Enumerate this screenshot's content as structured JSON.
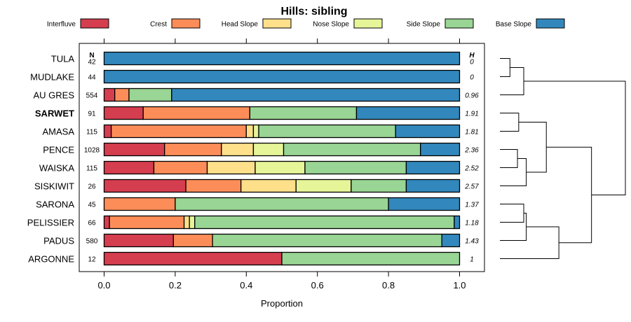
{
  "chart_data": {
    "type": "bar",
    "stacked": true,
    "orientation": "horizontal",
    "title": "Hills: sibling",
    "xlabel": "Proportion",
    "xlim": [
      0,
      1
    ],
    "xticks": [
      "0.0",
      "0.2",
      "0.4",
      "0.6",
      "0.8",
      "1.0"
    ],
    "n_header": "N",
    "h_header": "H",
    "highlight": "SARWET",
    "classes": [
      {
        "name": "Interfluve",
        "color": "#d53e4f"
      },
      {
        "name": "Crest",
        "color": "#fc8d59"
      },
      {
        "name": "Head Slope",
        "color": "#fee08b"
      },
      {
        "name": "Nose Slope",
        "color": "#e6f598"
      },
      {
        "name": "Side Slope",
        "color": "#99d594"
      },
      {
        "name": "Base Slope",
        "color": "#3288bd"
      }
    ],
    "rows": [
      {
        "label": "TULA",
        "n": "42",
        "h": "0",
        "values": [
          0,
          0,
          0,
          0,
          0,
          1.0
        ]
      },
      {
        "label": "MUDLAKE",
        "n": "44",
        "h": "0",
        "values": [
          0,
          0,
          0,
          0,
          0,
          1.0
        ]
      },
      {
        "label": "AU GRES",
        "n": "554",
        "h": "0.96",
        "values": [
          0.03,
          0.04,
          0,
          0,
          0.12,
          0.81
        ]
      },
      {
        "label": "SARWET",
        "n": "91",
        "h": "1.91",
        "values": [
          0.11,
          0.3,
          0,
          0,
          0.3,
          0.29
        ]
      },
      {
        "label": "AMASA",
        "n": "115",
        "h": "1.81",
        "values": [
          0.02,
          0.38,
          0.02,
          0.015,
          0.385,
          0.18
        ]
      },
      {
        "label": "PENCE",
        "n": "1028",
        "h": "2.36",
        "values": [
          0.17,
          0.16,
          0.09,
          0.085,
          0.385,
          0.11
        ]
      },
      {
        "label": "WAISKA",
        "n": "115",
        "h": "2.52",
        "values": [
          0.14,
          0.15,
          0.135,
          0.14,
          0.285,
          0.15
        ]
      },
      {
        "label": "SISKIWIT",
        "n": "26",
        "h": "2.57",
        "values": [
          0.23,
          0.155,
          0.155,
          0.155,
          0.155,
          0.15
        ]
      },
      {
        "label": "SARONA",
        "n": "45",
        "h": "1.37",
        "values": [
          0,
          0.2,
          0,
          0,
          0.6,
          0.2
        ]
      },
      {
        "label": "PELISSIER",
        "n": "66",
        "h": "1.18",
        "values": [
          0.015,
          0.21,
          0.015,
          0.015,
          0.73,
          0.015
        ]
      },
      {
        "label": "PADUS",
        "n": "580",
        "h": "1.43",
        "values": [
          0.195,
          0.11,
          0,
          0,
          0.645,
          0.05
        ]
      },
      {
        "label": "ARGONNE",
        "n": "12",
        "h": "1",
        "values": [
          0.5,
          0,
          0,
          0,
          0.5,
          0
        ]
      }
    ],
    "dendrogram": {
      "leaves": [
        "TULA",
        "MUDLAKE",
        "AU GRES",
        "SARWET",
        "AMASA",
        "PENCE",
        "WAISKA",
        "SISKIWIT",
        "SARONA",
        "PELISSIER",
        "PADUS",
        "ARGONNE"
      ],
      "merges": [
        {
          "left": "TULA",
          "right": "MUDLAKE",
          "height": 0.08
        },
        {
          "left": "m0",
          "right": "AU GRES",
          "height": 0.19
        },
        {
          "left": "SARWET",
          "right": "AMASA",
          "height": 0.15
        },
        {
          "left": "PENCE",
          "right": "WAISKA",
          "height": 0.14
        },
        {
          "left": "m3",
          "right": "SISKIWIT",
          "height": 0.21
        },
        {
          "left": "m2",
          "right": "m4",
          "height": 0.37
        },
        {
          "left": "SARONA",
          "right": "PELISSIER",
          "height": 0.19
        },
        {
          "left": "m6",
          "right": "PADUS",
          "height": 0.21
        },
        {
          "left": "m7",
          "right": "ARGONNE",
          "height": 0.47
        },
        {
          "left": "m5",
          "right": "m8",
          "height": 0.73
        },
        {
          "left": "m1",
          "right": "m9",
          "height": 1.0
        }
      ]
    }
  }
}
